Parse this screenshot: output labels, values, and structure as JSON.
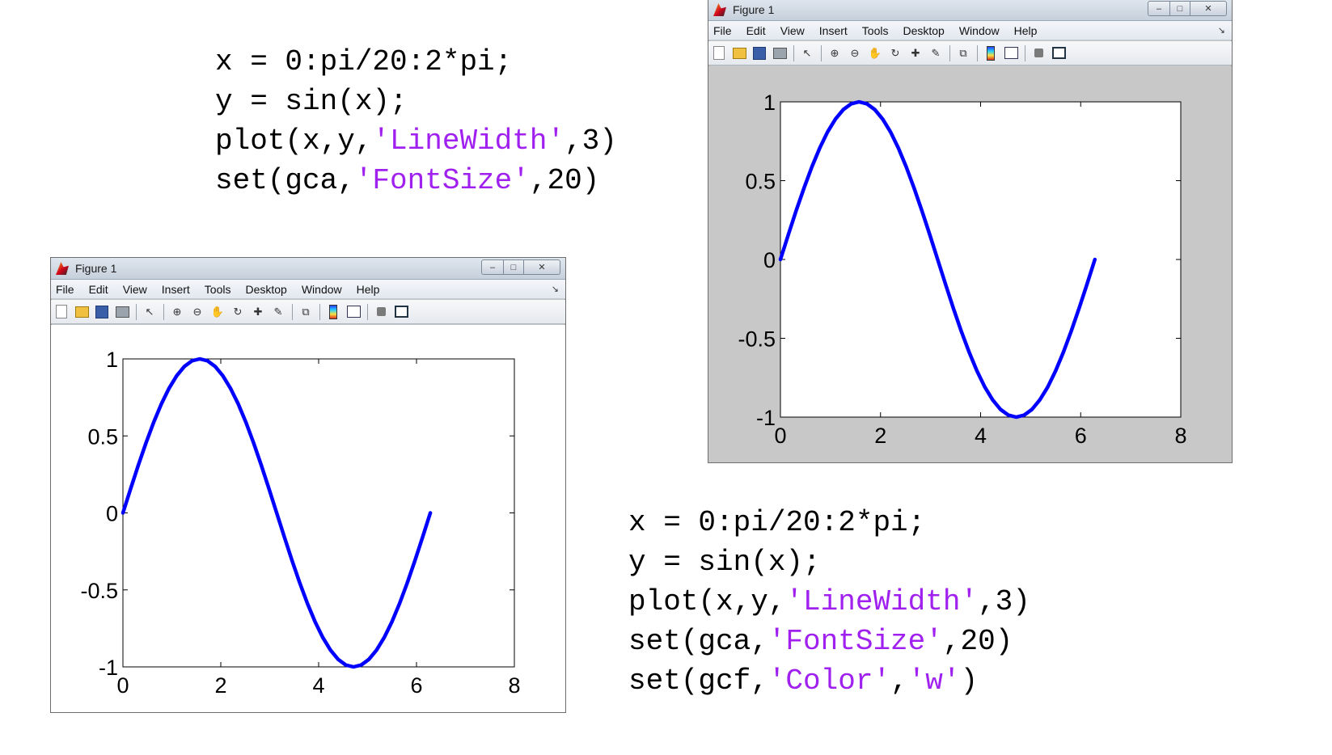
{
  "code_blocks": [
    {
      "lines": [
        [
          {
            "t": "x = 0:pi/20:2*pi;"
          }
        ],
        [
          {
            "t": "y = sin(x);"
          }
        ],
        [
          {
            "t": "plot(x,y,"
          },
          {
            "t": "'LineWidth'",
            "s": true
          },
          {
            "t": ",3)"
          }
        ],
        [
          {
            "t": "set(gca,"
          },
          {
            "t": "'FontSize'",
            "s": true
          },
          {
            "t": ",20)"
          }
        ]
      ]
    },
    {
      "lines": [
        [
          {
            "t": "x = 0:pi/20:2*pi;"
          }
        ],
        [
          {
            "t": "y = sin(x);"
          }
        ],
        [
          {
            "t": "plot(x,y,"
          },
          {
            "t": "'LineWidth'",
            "s": true
          },
          {
            "t": ",3)"
          }
        ],
        [
          {
            "t": "set(gca,"
          },
          {
            "t": "'FontSize'",
            "s": true
          },
          {
            "t": ",20)"
          }
        ],
        [
          {
            "t": "set(gcf,"
          },
          {
            "t": "'Color'",
            "s": true
          },
          {
            "t": ","
          },
          {
            "t": "'w'",
            "s": true
          },
          {
            "t": ")"
          }
        ]
      ]
    }
  ],
  "window": {
    "title": "Figure 1",
    "menu": [
      "File",
      "Edit",
      "View",
      "Insert",
      "Tools",
      "Desktop",
      "Window",
      "Help"
    ],
    "toolbar_icons": [
      "new-figure-icon",
      "open-file-icon",
      "save-icon",
      "print-icon",
      "|",
      "edit-plot-pointer-icon",
      "|",
      "zoom-in-icon",
      "zoom-out-icon",
      "pan-hand-icon",
      "rotate-3d-icon",
      "data-cursor-icon",
      "brush-icon",
      "|",
      "link-plot-icon",
      "|",
      "colorbar-icon",
      "legend-icon",
      "|",
      "hide-plot-tools-icon",
      "show-plot-tools-icon"
    ]
  },
  "colors": {
    "line": "#0000ff",
    "string_literal": "#a020f0",
    "figure_bg_default": "#c8c8c8",
    "figure_bg_white": "#ffffff"
  },
  "chart_data": [
    {
      "type": "line",
      "figure_color": "white",
      "series": [
        {
          "x_range": [
            0,
            6.2832
          ],
          "step": 0.15708,
          "function": "sin(x)",
          "line_width": 3,
          "color": "#0000ff"
        }
      ],
      "xlim": [
        0,
        8
      ],
      "ylim": [
        -1,
        1
      ],
      "xticks": [
        "0",
        "2",
        "4",
        "6",
        "8"
      ],
      "yticks": [
        "-1",
        "-0.5",
        "0",
        "0.5",
        "1"
      ],
      "grid": false
    },
    {
      "type": "line",
      "figure_color": "default-gray",
      "series": [
        {
          "x_range": [
            0,
            6.2832
          ],
          "step": 0.15708,
          "function": "sin(x)",
          "line_width": 3,
          "color": "#0000ff"
        }
      ],
      "xlim": [
        0,
        8
      ],
      "ylim": [
        -1,
        1
      ],
      "xticks": [
        "0",
        "2",
        "4",
        "6",
        "8"
      ],
      "yticks": [
        "-1",
        "-0.5",
        "0",
        "0.5",
        "1"
      ],
      "grid": false
    }
  ]
}
